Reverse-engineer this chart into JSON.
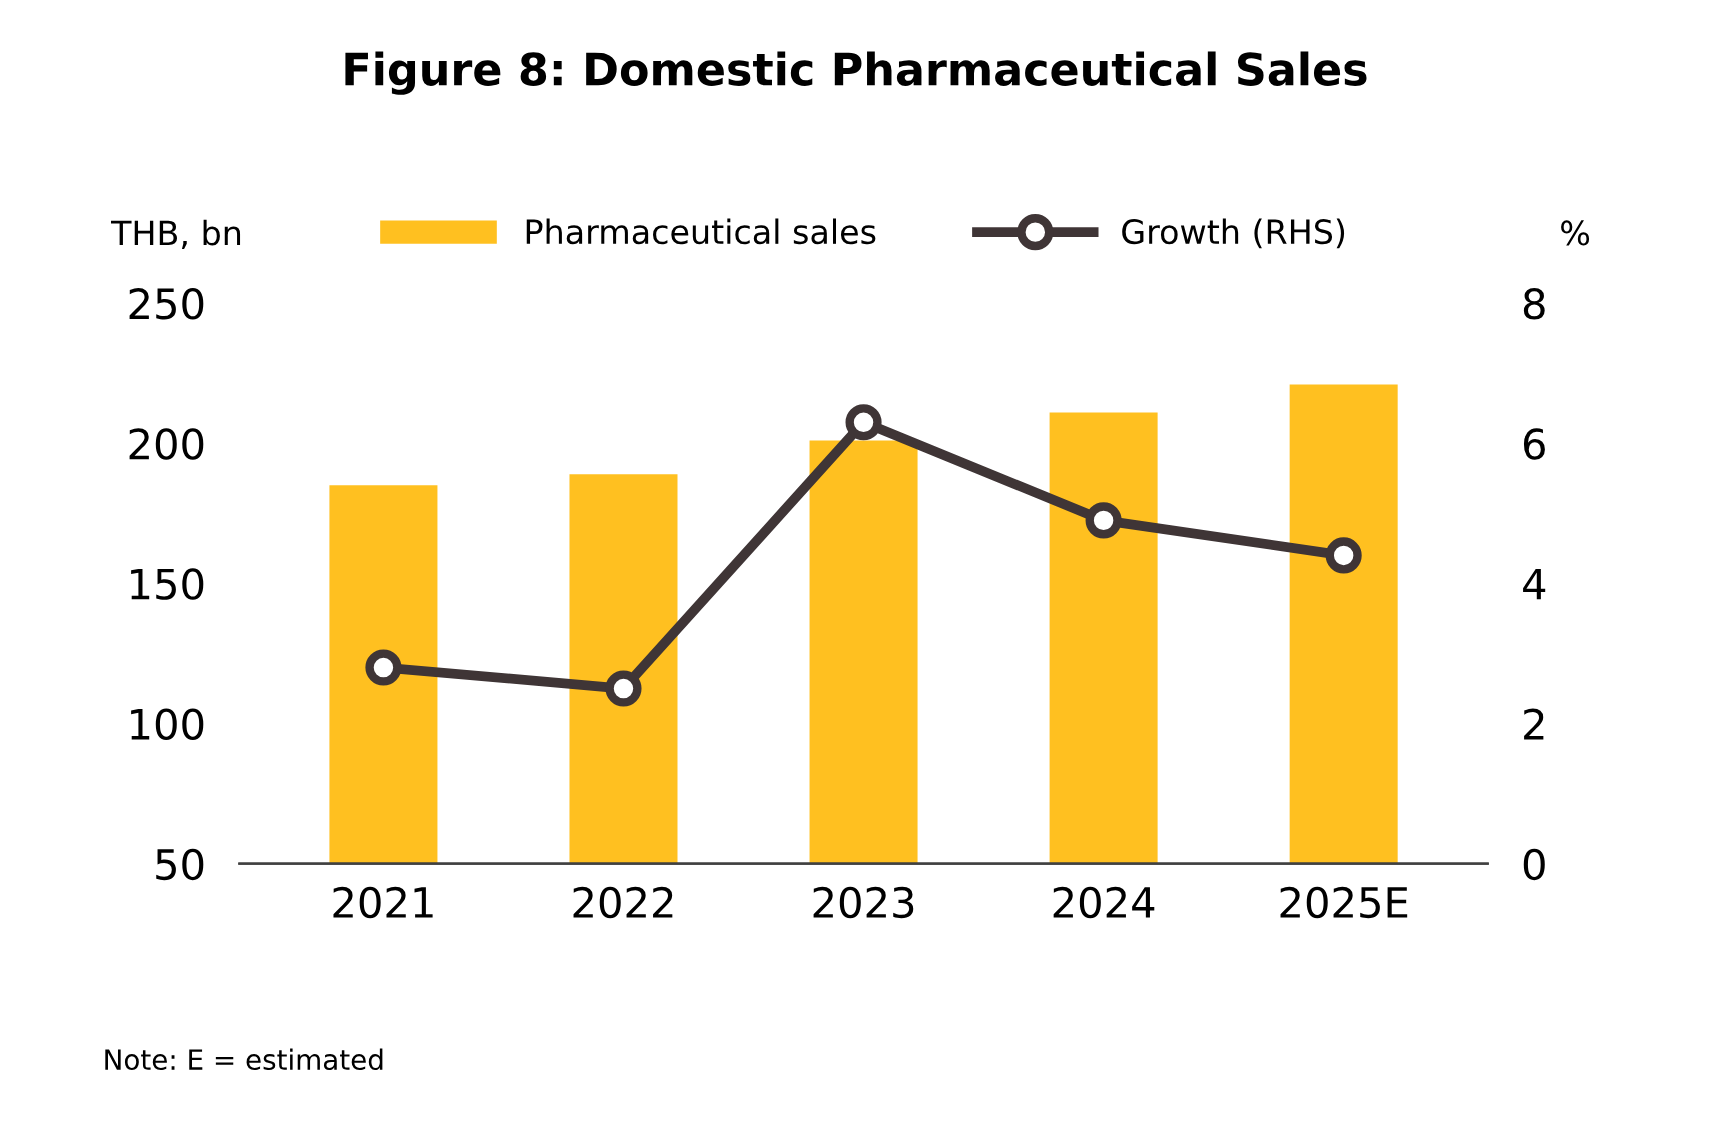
{
  "chart_data": {
    "type": "bar",
    "title": "Figure 8: Domestic Pharmaceutical Sales",
    "categories": [
      "2021",
      "2022",
      "2023",
      "2024",
      "2025E"
    ],
    "series": [
      {
        "name": "Pharmaceutical sales",
        "color": "#ffc020",
        "values": [
          185,
          189,
          201,
          211,
          221
        ]
      },
      {
        "name": "Growth (RHS)",
        "type": "line",
        "axis": "y2",
        "color": "#3f3536",
        "marker": "circle",
        "values": [
          2.8,
          2.5,
          6.3,
          4.9,
          4.4
        ]
      }
    ],
    "ylabel": "THB, bn",
    "y2label": "%",
    "ylim": [
      50,
      250
    ],
    "yticks": [
      50,
      100,
      150,
      200,
      250
    ],
    "y2lim": [
      0,
      8
    ],
    "y2ticks": [
      0,
      2,
      4,
      6,
      8
    ],
    "legend": "top",
    "grid": false,
    "annotations": [
      "Note: E = estimated"
    ]
  }
}
